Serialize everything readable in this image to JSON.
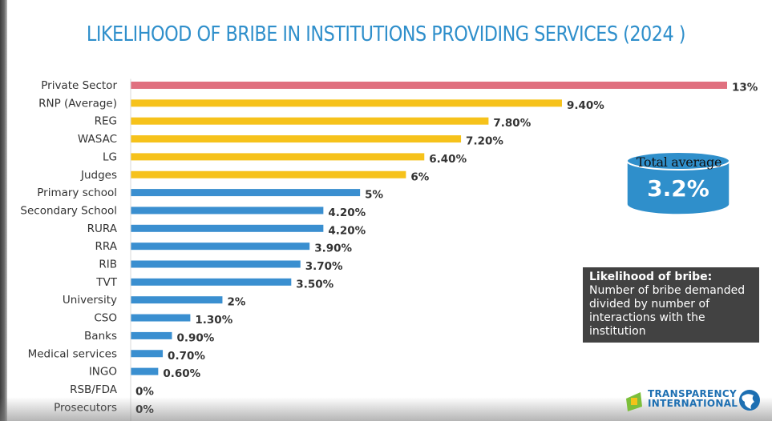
{
  "chart_data": {
    "type": "bar",
    "orientation": "horizontal",
    "title": "LIKELIHOOD OF BRIBE IN INSTITUTIONS PROVIDING SERVICES (2024 )",
    "xlabel": "",
    "ylabel": "",
    "xlim": [
      0,
      13
    ],
    "grid": false,
    "categories": [
      "Private Sector",
      "RNP (Average)",
      "REG",
      "WASAC",
      "LG",
      "Judges",
      "Primary school",
      "Secondary School",
      "RURA",
      "RRA",
      "RIB",
      "TVT",
      "University",
      "CSO",
      "Banks",
      "Medical services",
      "INGO",
      "RSB/FDA",
      "Prosecutors"
    ],
    "values": [
      13,
      9.4,
      7.8,
      7.2,
      6.4,
      6,
      5,
      4.2,
      4.2,
      3.9,
      3.7,
      3.5,
      2,
      1.3,
      0.9,
      0.7,
      0.6,
      0,
      0
    ],
    "value_labels": [
      "13%",
      "9.40%",
      "7.80%",
      "7.20%",
      "6.40%",
      "6%",
      "5%",
      "4.20%",
      "4.20%",
      "3.90%",
      "3.70%",
      "3.50%",
      "2%",
      "1.30%",
      "0.90%",
      "0.70%",
      "0.60%",
      "0%",
      "0%"
    ],
    "bar_groups": [
      "private",
      "high",
      "high",
      "high",
      "high",
      "high",
      "other",
      "other",
      "other",
      "other",
      "other",
      "other",
      "other",
      "other",
      "other",
      "other",
      "other",
      "other",
      "other"
    ]
  },
  "colors": {
    "title": "#2f8fcb",
    "private": "#e0707f",
    "high": "#f6c21b",
    "other": "#3a8fd0",
    "cylinder": "#2f8fcb",
    "note_bg": "#424242",
    "logo": "#1d6fb2",
    "logo_accent": "#7cbf3a"
  },
  "total_average": {
    "label": "Total average",
    "value": "3.2%"
  },
  "note": {
    "title": "Likelihood of bribe:",
    "body": "Number of bribe demanded divided by number of interactions with the institution"
  },
  "logo": {
    "line1": "TRANSPARENCY",
    "line2": "INTERNATIONAL",
    "icon": "globe-icon"
  }
}
